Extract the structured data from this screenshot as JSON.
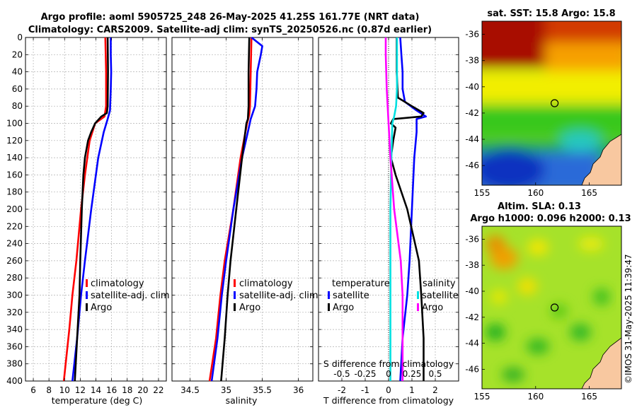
{
  "header": {
    "line1": "Argo profile: aoml 5905725_248 26-May-2025 41.25S 161.77E (NRT data)",
    "line2": "Climatology: CARS2009. Satellite-adj clim: synTS_20250526.nc (0.87d earlier)"
  },
  "credit": "©IMOS 31-May-2025 11:39:47",
  "colors": {
    "red": "#ff0000",
    "blue": "#0000ff",
    "black": "#000000",
    "cyan": "#00e0e0",
    "magenta": "#ff00ff"
  },
  "chart_data": [
    {
      "type": "line",
      "name": "temperature",
      "xlabel": "temperature (deg C)",
      "xlim": [
        5,
        23
      ],
      "ylim": [
        0,
        400
      ],
      "x_ticks": [
        "6",
        "8",
        "10",
        "12",
        "14",
        "16",
        "18",
        "20",
        "22"
      ],
      "y_ticks": [
        "0",
        "20",
        "40",
        "60",
        "80",
        "100",
        "120",
        "140",
        "160",
        "180",
        "200",
        "220",
        "240",
        "260",
        "280",
        "300",
        "320",
        "340",
        "360",
        "380",
        "400"
      ],
      "grid": true,
      "legend": [
        "climatology",
        "satellite-adj. clim",
        "Argo"
      ],
      "legend_position": "bottom-right",
      "series": [
        {
          "name": "climatology",
          "color": "red",
          "depth": [
            0,
            40,
            80,
            92,
            100,
            120,
            160,
            200,
            260,
            300,
            340,
            400
          ],
          "values": [
            15.2,
            15.3,
            15.3,
            15.1,
            13.9,
            13.2,
            12.6,
            12.1,
            11.5,
            11.0,
            10.6,
            9.9
          ]
        },
        {
          "name": "satellite-adj. clim",
          "color": "blue",
          "depth": [
            0,
            20,
            40,
            60,
            85,
            95,
            110,
            140,
            200,
            260,
            300,
            350,
            400
          ],
          "values": [
            15.9,
            15.9,
            15.95,
            15.9,
            15.8,
            15.5,
            15.0,
            14.3,
            13.4,
            12.6,
            12.1,
            11.6,
            11.0
          ]
        },
        {
          "name": "Argo",
          "color": "black",
          "depth": [
            0,
            40,
            80,
            88,
            92,
            100,
            110,
            120,
            140,
            160,
            200,
            260,
            300,
            350,
            400
          ],
          "values": [
            15.5,
            15.55,
            15.5,
            15.4,
            14.7,
            13.9,
            13.4,
            13.0,
            12.6,
            12.4,
            12.2,
            12.0,
            11.9,
            11.6,
            11.3
          ]
        }
      ]
    },
    {
      "type": "line",
      "name": "salinity",
      "xlabel": "salinity",
      "xlim": [
        34.25,
        36.2
      ],
      "ylim": [
        0,
        400
      ],
      "x_ticks": [
        "34.5",
        "35",
        "35.5",
        "36"
      ],
      "grid": true,
      "legend": [
        "climatology",
        "satellite-adj. clim",
        "Argo"
      ],
      "legend_position": "bottom-right",
      "series": [
        {
          "name": "climatology",
          "color": "red",
          "depth": [
            0,
            40,
            80,
            90,
            100,
            140,
            200,
            260,
            300,
            350,
            400
          ],
          "values": [
            35.35,
            35.34,
            35.33,
            35.32,
            35.29,
            35.2,
            35.1,
            34.98,
            34.92,
            34.86,
            34.77
          ]
        },
        {
          "name": "satellite-adj. clim",
          "color": "blue",
          "depth": [
            0,
            10,
            20,
            40,
            60,
            80,
            95,
            110,
            140,
            200,
            260,
            300,
            350,
            400
          ],
          "values": [
            35.35,
            35.5,
            35.48,
            35.43,
            35.42,
            35.4,
            35.34,
            35.3,
            35.22,
            35.1,
            35.0,
            34.94,
            34.88,
            34.8
          ]
        },
        {
          "name": "Argo",
          "color": "black",
          "depth": [
            0,
            40,
            80,
            95,
            100,
            140,
            200,
            260,
            300,
            350,
            400
          ],
          "values": [
            35.32,
            35.31,
            35.31,
            35.3,
            35.28,
            35.22,
            35.14,
            35.06,
            35.02,
            34.98,
            34.93
          ]
        }
      ]
    },
    {
      "type": "line",
      "name": "difference",
      "xlabel": "T difference from climatology",
      "xlabel_top": "S difference from climatology",
      "xlim": [
        -3,
        3
      ],
      "ylim": [
        0,
        400
      ],
      "x_ticks": [
        "-2",
        "-1",
        "0",
        "1",
        "2"
      ],
      "top_ticks": [
        "-0.5",
        "-0.25",
        "0",
        "0.25",
        "0.5"
      ],
      "grid": true,
      "legend_temperature_title": "temperature",
      "legend_salinity_title": "salinity",
      "legend_temperature": [
        "satellite",
        "Argo"
      ],
      "legend_salinity": [
        "satellite",
        "Argo"
      ],
      "series": [
        {
          "name": "temperature satellite",
          "color": "blue",
          "depth": [
            0,
            20,
            40,
            60,
            75,
            85,
            92,
            95,
            110,
            140,
            200,
            260,
            300,
            350,
            400
          ],
          "values": [
            0.5,
            0.55,
            0.6,
            0.6,
            0.7,
            1.2,
            1.6,
            1.2,
            1.2,
            1.1,
            1.0,
            0.9,
            0.8,
            0.6,
            0.5
          ]
        },
        {
          "name": "temperature Argo",
          "color": "black",
          "depth": [
            0,
            40,
            70,
            80,
            88,
            92,
            95,
            100,
            105,
            120,
            140,
            160,
            200,
            260,
            300,
            350,
            400
          ],
          "values": [
            0.35,
            0.35,
            0.4,
            1.0,
            1.5,
            1.4,
            0.2,
            0.1,
            0.3,
            0.2,
            0.1,
            0.3,
            0.8,
            1.3,
            1.4,
            1.5,
            1.5
          ]
        },
        {
          "name": "salinity satellite",
          "color": "cyan",
          "depth": [
            0,
            20,
            60,
            80,
            92,
            100,
            140,
            200,
            300,
            400
          ],
          "values": [
            0.09,
            0.09,
            0.09,
            0.08,
            0.06,
            0.04,
            0.03,
            0.02,
            0.02,
            0.02
          ]
        },
        {
          "name": "salinity Argo",
          "color": "magenta",
          "depth": [
            0,
            20,
            60,
            80,
            100,
            140,
            200,
            260,
            300,
            350,
            400
          ],
          "values": [
            -0.03,
            -0.03,
            -0.02,
            -0.01,
            0.0,
            0.02,
            0.06,
            0.13,
            0.15,
            0.15,
            0.15
          ]
        }
      ]
    }
  ],
  "maps": [
    {
      "title": "sat. SST: 15.8 Argo: 15.8",
      "x_ticks": [
        "155",
        "160",
        "165"
      ],
      "y_ticks": [
        "-36",
        "-38",
        "-40",
        "-42",
        "-44",
        "-46"
      ],
      "lon_range": [
        155,
        168
      ],
      "lat_range": [
        -47.5,
        -35
      ],
      "argo_lon": 161.77,
      "argo_lat": -41.25
    },
    {
      "title_line1": "Altim. SLA: 0.13",
      "title_line2": "Argo h1000: 0.096 h2000: 0.13",
      "x_ticks": [
        "155",
        "160",
        "165"
      ],
      "y_ticks": [
        "-36",
        "-38",
        "-40",
        "-42",
        "-44",
        "-46"
      ],
      "lon_range": [
        155,
        168
      ],
      "lat_range": [
        -47.5,
        -35
      ],
      "argo_lon": 161.77,
      "argo_lat": -41.25
    }
  ]
}
